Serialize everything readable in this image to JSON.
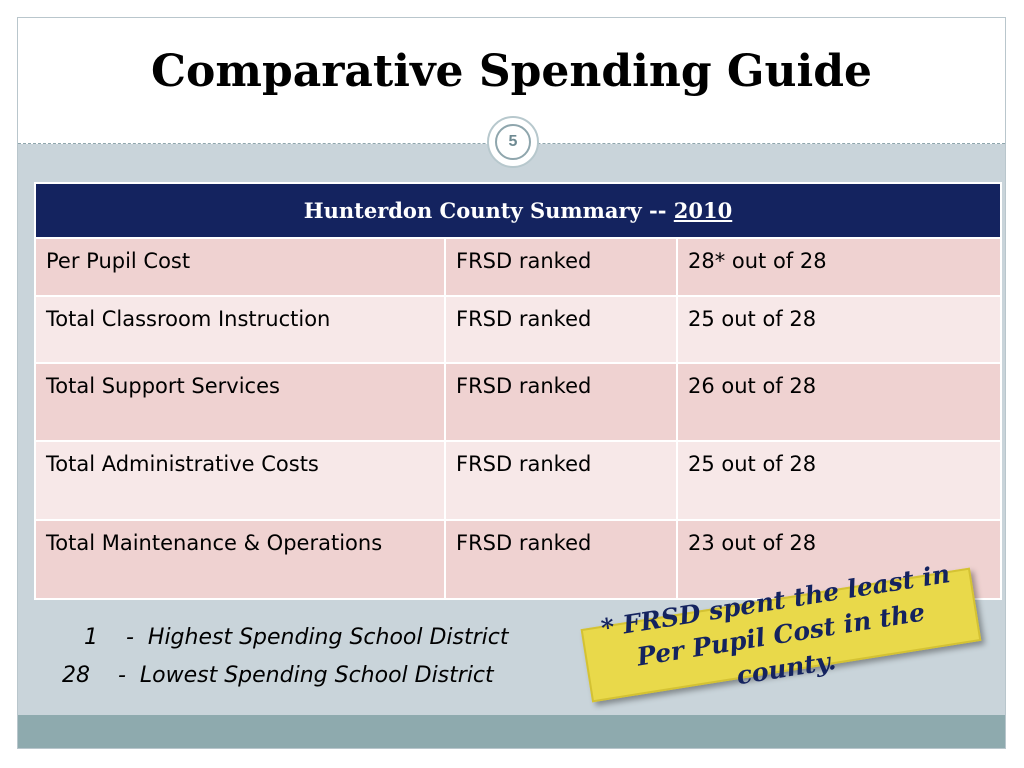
{
  "title": "Comparative Spending Guide",
  "page_number": "5",
  "table": {
    "header_text": "Hunterdon County Summary -- ",
    "header_year": "2010",
    "rows": [
      {
        "category": "Per Pupil Cost",
        "label": "FRSD ranked",
        "rank": "28* out of 28"
      },
      {
        "category": "Total Classroom Instruction",
        "label": "FRSD ranked",
        "rank": "25   out of 28"
      },
      {
        "category": "Total Support Services",
        "label": "FRSD ranked",
        "rank": "26   out of 28"
      },
      {
        "category": "Total Administrative Costs",
        "label": "FRSD ranked",
        "rank": "25   out of 28"
      },
      {
        "category": "Total Maintenance & Operations",
        "label": "FRSD ranked",
        "rank": "23   out of 28"
      }
    ]
  },
  "legend": {
    "line1": "1    -  Highest Spending School District",
    "line2": "28    -  Lowest Spending School District"
  },
  "note": {
    "line1": "* FRSD spent the least in",
    "line2": "Per Pupil Cost in the county."
  },
  "colors": {
    "header_background": "#14235f",
    "row_dark": "#efd2d1",
    "row_light": "#f7e8e8",
    "note_background": "#e9d94a"
  }
}
